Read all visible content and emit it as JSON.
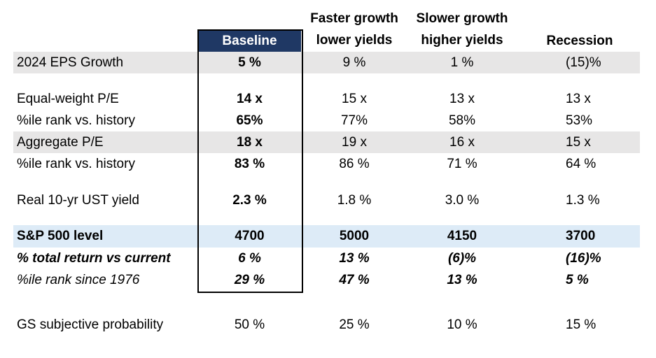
{
  "headers": {
    "baseline": "Baseline",
    "faster": [
      "Faster growth",
      "lower yields"
    ],
    "slower": [
      "Slower growth",
      "higher yields"
    ],
    "recession": "Recession"
  },
  "rows": [
    {
      "label": "2024 EPS Growth",
      "values": [
        "5 %",
        "9 %",
        "1 %",
        "(15)%"
      ]
    },
    {
      "label": "Equal-weight P/E",
      "values": [
        "14 x",
        "15 x",
        "13 x",
        "13 x"
      ]
    },
    {
      "label": "%ile rank vs. history",
      "values": [
        "65%",
        "77%",
        "58%",
        "53%"
      ]
    },
    {
      "label": "Aggregate P/E",
      "values": [
        "18 x",
        "19 x",
        "16 x",
        "15 x"
      ]
    },
    {
      "label": "%ile rank vs. history",
      "values": [
        "83 %",
        "86 %",
        "71 %",
        "64 %"
      ]
    },
    {
      "label": "Real 10-yr UST yield",
      "values": [
        "2.3 %",
        "1.8 %",
        "3.0 %",
        "1.3 %"
      ]
    },
    {
      "label": "S&P 500 level",
      "values": [
        "4700",
        "5000",
        "4150",
        "3700"
      ]
    },
    {
      "label": "% total return vs current",
      "values": [
        "6 %",
        "13 %",
        "(6)%",
        "(16)%"
      ]
    },
    {
      "label": "%ile rank since 1976",
      "values": [
        "29 %",
        "47 %",
        "13 %",
        "5 %"
      ]
    },
    {
      "label": "GS subjective probability",
      "values": [
        "50 %",
        "25 %",
        "10 %",
        "15 %"
      ]
    }
  ],
  "colors": {
    "baseline_header_bg": "#1f3864",
    "gray_band": "#e7e6e6",
    "blue_band": "#ddebf7"
  }
}
